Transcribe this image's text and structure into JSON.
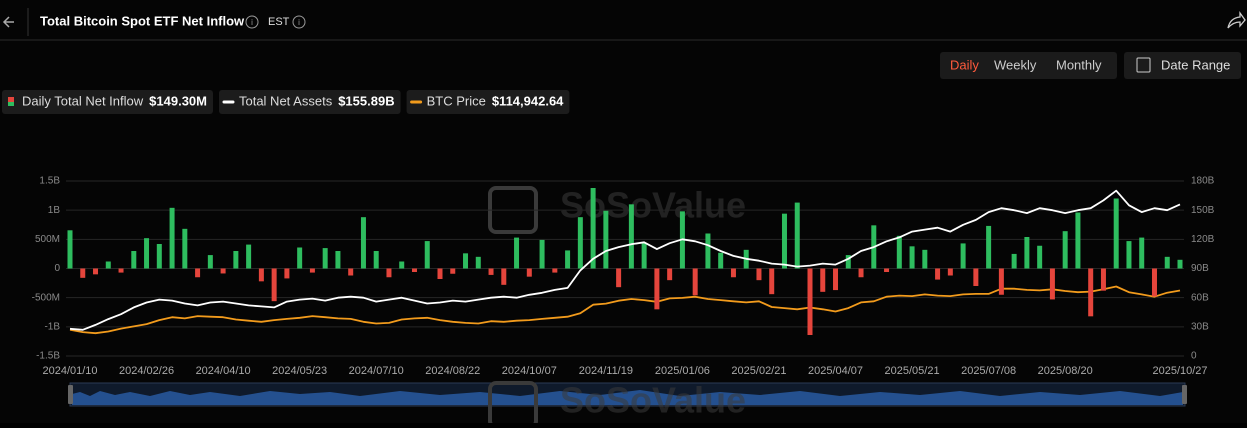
{
  "header": {
    "title": "Total Bitcoin Spot ETF Net Inflow",
    "timezone": "EST"
  },
  "controls": {
    "periods": [
      "Daily",
      "Weekly",
      "Monthly"
    ],
    "active": "Daily",
    "date_range": "Date Range"
  },
  "watermark": "SoSoValue",
  "chart_data": {
    "type": "bar",
    "categories": [
      "2024/01/10",
      null,
      null,
      null,
      null,
      null,
      "2024/02/26",
      null,
      null,
      null,
      null,
      null,
      "2024/04/10",
      null,
      null,
      null,
      null,
      null,
      "2024/05/23",
      null,
      null,
      null,
      null,
      null,
      "2024/07/10",
      null,
      null,
      null,
      null,
      null,
      "2024/08/22",
      null,
      null,
      null,
      null,
      null,
      "2024/10/07",
      null,
      null,
      null,
      null,
      null,
      "2024/11/19",
      null,
      null,
      null,
      null,
      null,
      "2025/01/06",
      null,
      null,
      null,
      null,
      null,
      "2025/02/21",
      null,
      null,
      null,
      null,
      null,
      "2025/04/07",
      null,
      null,
      null,
      null,
      null,
      "2025/05/21",
      null,
      null,
      null,
      null,
      null,
      "2025/07/08",
      null,
      null,
      null,
      null,
      null,
      "2025/08/20",
      null,
      null,
      null,
      null,
      null,
      null,
      null,
      null,
      "2025/10/27"
    ],
    "series": [
      {
        "name": "Daily Total Net Inflow",
        "type": "bar",
        "color": "#2ebd5f",
        "negative_color": "#e5453c",
        "legend_value": "$149.30M",
        "values": [
          655,
          -160,
          -100,
          120,
          -70,
          300,
          520,
          420,
          1040,
          680,
          -150,
          230,
          -85,
          300,
          410,
          -220,
          -560,
          -170,
          360,
          -70,
          350,
          300,
          -120,
          880,
          300,
          -150,
          120,
          -60,
          470,
          -180,
          -90,
          260,
          200,
          -110,
          -280,
          530,
          -140,
          490,
          -70,
          310,
          880,
          1380,
          990,
          -320,
          1100,
          440,
          -700,
          -200,
          980,
          -460,
          600,
          270,
          -150,
          320,
          -200,
          -440,
          940,
          1130,
          -1140,
          -400,
          -370,
          230,
          -150,
          740,
          -60,
          560,
          380,
          320,
          -190,
          -120,
          430,
          -300,
          730,
          -450,
          250,
          540,
          390,
          -530,
          640,
          960,
          -820,
          -380,
          1200,
          470,
          530,
          -480,
          200,
          149.3
        ]
      },
      {
        "name": "Total Net Assets",
        "type": "line",
        "axis": "y2",
        "color": "#ffffff",
        "legend_value": "$155.89B",
        "values": [
          28,
          27,
          32,
          38,
          43,
          50,
          55,
          58,
          57,
          54,
          52,
          55,
          56,
          54,
          52,
          51,
          50,
          56,
          58,
          59,
          57,
          60,
          61,
          60,
          56,
          58,
          60,
          57,
          54,
          55,
          57,
          56,
          58,
          60,
          61,
          60,
          63,
          65,
          68,
          70,
          88,
          100,
          108,
          112,
          115,
          117,
          110,
          116,
          120,
          118,
          114,
          108,
          103,
          100,
          98,
          95,
          94,
          92,
          93,
          95,
          94,
          100,
          108,
          112,
          118,
          122,
          128,
          130,
          132,
          128,
          135,
          140,
          148,
          152,
          150,
          147,
          152,
          150,
          147,
          150,
          152,
          160,
          170,
          155,
          148,
          152,
          150,
          155.89
        ]
      },
      {
        "name": "BTC Price",
        "type": "line",
        "axis": "y3",
        "color": "#f29b1c",
        "legend_value": "$114,942.64",
        "values": [
          46000,
          42000,
          40000,
          43000,
          48000,
          52000,
          56000,
          63000,
          68000,
          66000,
          70000,
          69000,
          68000,
          64000,
          62000,
          60000,
          63000,
          65000,
          67000,
          70000,
          68000,
          66000,
          65000,
          60000,
          57000,
          58000,
          64000,
          66000,
          67000,
          63000,
          60000,
          58000,
          57000,
          61000,
          60000,
          62000,
          63000,
          65000,
          67000,
          69000,
          75000,
          90000,
          92000,
          97000,
          100000,
          98000,
          95000,
          101000,
          102000,
          104000,
          100000,
          98000,
          96000,
          94000,
          96000,
          86000,
          84000,
          82000,
          85000,
          82000,
          78000,
          84000,
          94000,
          96000,
          104000,
          106000,
          105000,
          108000,
          106000,
          105000,
          108000,
          109000,
          109000,
          118000,
          118000,
          116000,
          115000,
          117000,
          114000,
          112000,
          113000,
          117000,
          122000,
          112000,
          108000,
          104000,
          111000,
          114942.64
        ]
      }
    ],
    "ylim": [
      -1500,
      1500
    ],
    "yticks": [
      {
        "value": -1500,
        "label": "-1.5B"
      },
      {
        "value": -1000,
        "label": "-1B"
      },
      {
        "value": -500,
        "label": "-500M"
      },
      0,
      {
        "value": 500,
        "label": "500M"
      },
      {
        "value": 1000,
        "label": "1B"
      },
      {
        "value": 1500,
        "label": "1.5B"
      }
    ],
    "y2lim": [
      0,
      180
    ],
    "y2ticks": [
      0,
      {
        "value": 30,
        "label": "30B"
      },
      {
        "value": 60,
        "label": "60B"
      },
      {
        "value": 90,
        "label": "90B"
      },
      {
        "value": 120,
        "label": "120B"
      },
      {
        "value": 150,
        "label": "150B"
      },
      {
        "value": 180,
        "label": "180B"
      }
    ],
    "y3lim": [
      0,
      307000
    ],
    "grid": true
  }
}
